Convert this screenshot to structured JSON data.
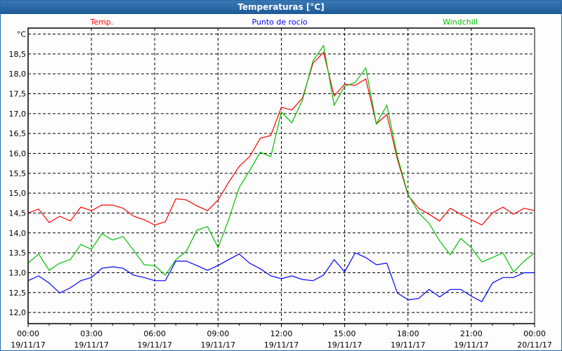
{
  "window": {
    "title": "Temperaturas [°C]"
  },
  "chart_data": {
    "type": "line",
    "title": "Temperaturas [°C]",
    "ylabel": "°C",
    "ylim": [
      11.72,
      19.15
    ],
    "yticks": [
      12.0,
      12.5,
      13.0,
      13.5,
      14.0,
      14.5,
      15.0,
      15.5,
      16.0,
      16.5,
      17.0,
      17.5,
      18.0,
      18.5
    ],
    "ytick_labels": [
      "12,0",
      "12,5",
      "13,0",
      "13,5",
      "14,0",
      "14,5",
      "15,0",
      "15,5",
      "16,0",
      "16,5",
      "17,0",
      "17,5",
      "18,0",
      "18,5"
    ],
    "xlim_hours": [
      0,
      24
    ],
    "xticks": [
      {
        "hour": 0,
        "time": "00:00",
        "date": "19/11/17"
      },
      {
        "hour": 3,
        "time": "03:00",
        "date": "19/11/17"
      },
      {
        "hour": 6,
        "time": "06:00",
        "date": "19/11/17"
      },
      {
        "hour": 9,
        "time": "09:00",
        "date": "19/11/17"
      },
      {
        "hour": 12,
        "time": "12:00",
        "date": "19/11/17"
      },
      {
        "hour": 15,
        "time": "15:00",
        "date": "19/11/17"
      },
      {
        "hour": 18,
        "time": "18:00",
        "date": "19/11/17"
      },
      {
        "hour": 21,
        "time": "21:00",
        "date": "19/11/17"
      },
      {
        "hour": 24,
        "time": "00:00",
        "date": "20/11/17"
      }
    ],
    "grid": true,
    "x_step_hours": 0.5,
    "series": [
      {
        "name": "Temp.",
        "color": "#ff0000",
        "values": [
          14.5,
          14.6,
          14.26,
          14.42,
          14.3,
          14.65,
          14.56,
          14.7,
          14.7,
          14.62,
          14.42,
          14.33,
          14.2,
          14.28,
          14.86,
          14.83,
          14.68,
          14.56,
          14.83,
          15.27,
          15.67,
          15.92,
          16.38,
          16.45,
          17.16,
          17.09,
          17.39,
          18.27,
          18.54,
          17.44,
          17.74,
          17.71,
          17.87,
          16.74,
          16.98,
          15.85,
          14.95,
          14.62,
          14.47,
          14.3,
          14.62,
          14.47,
          14.33,
          14.2,
          14.5,
          14.65,
          14.47,
          14.62,
          14.56
        ]
      },
      {
        "name": "Punto de rocío",
        "color": "#0000ff",
        "values": [
          12.8,
          12.92,
          12.74,
          12.49,
          12.62,
          12.8,
          12.88,
          13.11,
          13.15,
          13.11,
          12.94,
          12.88,
          12.8,
          12.8,
          13.29,
          13.29,
          13.18,
          13.06,
          13.18,
          13.33,
          13.47,
          13.24,
          13.1,
          12.92,
          12.85,
          12.92,
          12.83,
          12.8,
          12.94,
          13.33,
          13.02,
          13.5,
          13.38,
          13.2,
          13.24,
          12.49,
          12.32,
          12.35,
          12.58,
          12.39,
          12.58,
          12.58,
          12.41,
          12.27,
          12.74,
          12.88,
          12.88,
          13.0,
          13.0
        ]
      },
      {
        "name": "Windchill",
        "color": "#00c000",
        "values": [
          13.24,
          13.47,
          13.06,
          13.24,
          13.33,
          13.71,
          13.59,
          13.98,
          13.82,
          13.91,
          13.56,
          13.2,
          13.18,
          12.94,
          13.33,
          13.54,
          14.07,
          14.16,
          13.63,
          14.33,
          15.14,
          15.57,
          16.03,
          15.92,
          17.04,
          16.77,
          17.34,
          18.33,
          18.71,
          17.21,
          17.69,
          17.78,
          18.15,
          16.74,
          17.21,
          15.92,
          14.97,
          14.51,
          14.24,
          13.8,
          13.45,
          13.86,
          13.63,
          13.27,
          13.38,
          13.5,
          13.02,
          13.29,
          13.5
        ]
      }
    ],
    "legend": "top"
  }
}
